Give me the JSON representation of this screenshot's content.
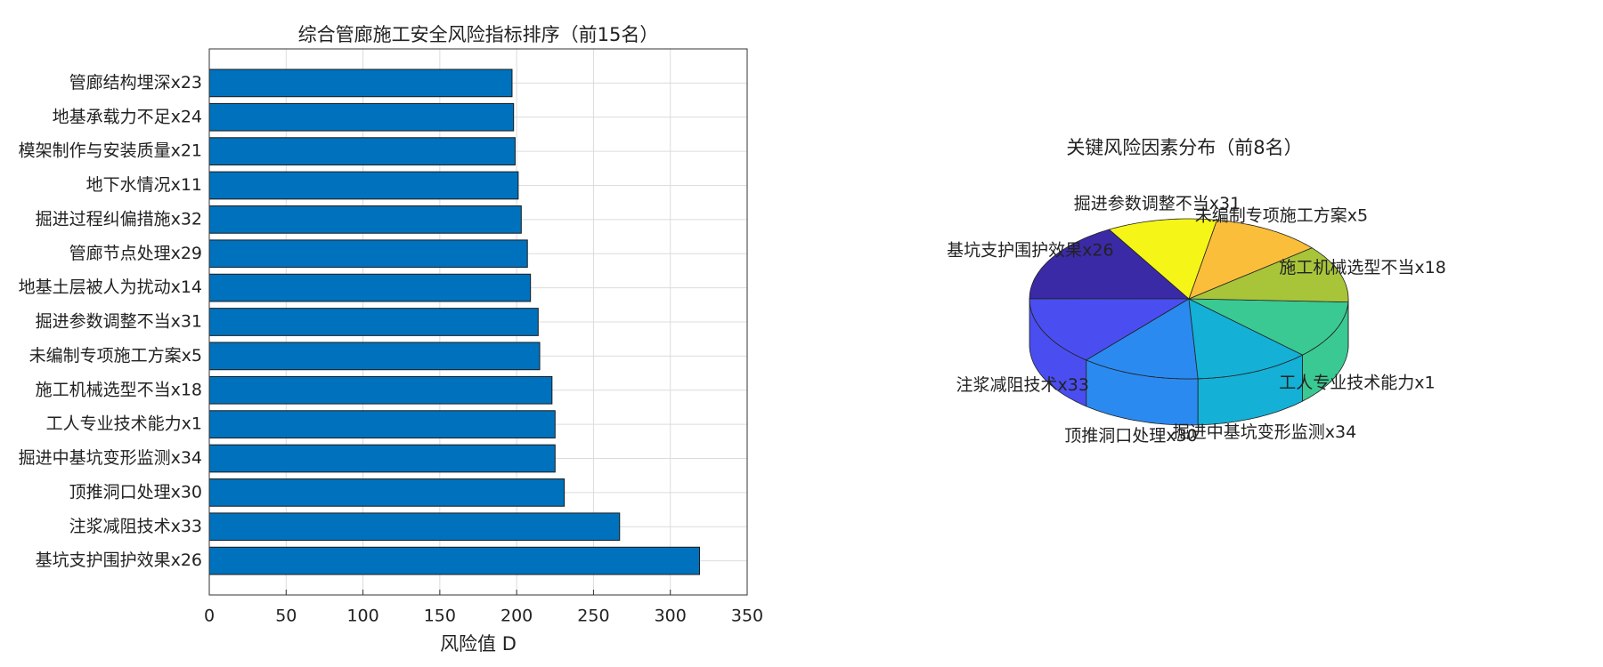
{
  "chart_data": [
    {
      "type": "barh",
      "title": "综合管廊施工安全风险指标排序（前15名）",
      "x_label": "风险值 D",
      "categories": [
        "基坑支护围护效果x26",
        "注浆减阻技术x33",
        "顶推洞口处理x30",
        "掘进中基坑变形监测x34",
        "工人专业技术能力x1",
        "施工机械选型不当x18",
        "未编制专项施工方案x5",
        "掘进参数调整不当x31",
        "地基土层被人为扰动x14",
        "管廊节点处理x29",
        "掘进过程纠偏措施x32",
        "地下水情况x11",
        "模架制作与安装质量x21",
        "地基承载力不足x24",
        "管廊结构埋深x23"
      ],
      "values": [
        319,
        267,
        231,
        225,
        225,
        223,
        215,
        214,
        209,
        207,
        203,
        201,
        199,
        198,
        197
      ],
      "color": "#0072bd",
      "xlim": [
        0,
        350
      ],
      "xticks": [
        0,
        50,
        100,
        150,
        200,
        250,
        300,
        350
      ],
      "grid": true
    },
    {
      "type": "pie3d",
      "title": "关键风险因素分布（前8名）",
      "categories": [
        "基坑支护围护效果x26",
        "注浆减阻技术x33",
        "顶推洞口处理x30",
        "掘进中基坑变形监测x34",
        "工人专业技术能力x1",
        "施工机械选型不当x18",
        "未编制专项施工方案x5",
        "掘进参数调整不当x31"
      ],
      "values": [
        319,
        267,
        231,
        225,
        225,
        223,
        215,
        214
      ],
      "colors": [
        "#3b2aa6",
        "#4a4ef0",
        "#2b8af0",
        "#14b0d6",
        "#3ac993",
        "#a8c53a",
        "#fbbe3a",
        "#f5f518"
      ]
    }
  ]
}
